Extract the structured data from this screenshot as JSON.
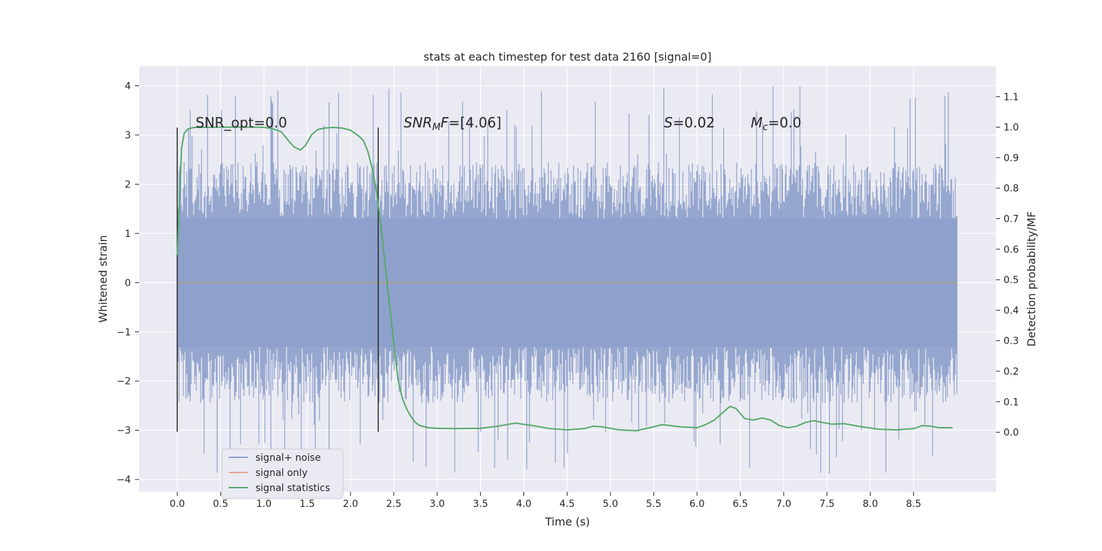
{
  "chart_data": {
    "type": "line",
    "title": "stats at each timestep for test data 2160 [signal=0]",
    "xlabel": "Time (s)",
    "ylabel": "Whitened strain",
    "y2label": "Detection probability/MF",
    "xlim": [
      -0.44,
      9.45
    ],
    "ylim": [
      -4.25,
      4.4
    ],
    "y2lim": [
      -0.195,
      1.2
    ],
    "x_ticks": [
      0.0,
      0.5,
      1.0,
      1.5,
      2.0,
      2.5,
      3.0,
      3.5,
      4.0,
      4.5,
      5.0,
      5.5,
      6.0,
      6.5,
      7.0,
      7.5,
      8.0,
      8.5
    ],
    "x_tick_labels": [
      "0.0",
      "0.5",
      "1.0",
      "1.5",
      "2.0",
      "2.5",
      "3.0",
      "3.5",
      "4.0",
      "4.5",
      "5.0",
      "5.5",
      "6.0",
      "6.5",
      "7.0",
      "7.5",
      "8.0",
      "8.5"
    ],
    "y_ticks": [
      4,
      3,
      2,
      1,
      0,
      -1,
      -2,
      -3,
      -4
    ],
    "y_tick_labels": [
      "4",
      "3",
      "2",
      "1",
      "0",
      "−1",
      "−2",
      "−3",
      "−4"
    ],
    "y2_ticks": [
      1.1,
      1.0,
      0.9,
      0.8,
      0.7,
      0.6,
      0.5,
      0.4,
      0.3,
      0.2,
      0.1,
      0.0
    ],
    "y2_tick_labels": [
      "1.1",
      "1.0",
      "0.9",
      "0.8",
      "0.7",
      "0.6",
      "0.5",
      "0.4",
      "0.3",
      "0.2",
      "0.1",
      "0.0"
    ],
    "grid": true,
    "legend_position": "lower-left",
    "series": [
      {
        "name": "signal+ noise",
        "color": "#8da0cb",
        "kind": "noise_band",
        "x_range": [
          0.0,
          9.0
        ],
        "typical_range": [
          -2.0,
          2.0
        ],
        "peak_range": [
          -3.9,
          4.0
        ]
      },
      {
        "name": "signal only",
        "color": "#e5a48c",
        "kind": "line",
        "x": [
          0.0,
          9.0
        ],
        "y": [
          0.0,
          0.0
        ]
      },
      {
        "name": "signal statistics",
        "color": "#55a868",
        "kind": "line",
        "axis": "right",
        "x": [
          0.0,
          0.02,
          0.05,
          0.08,
          0.12,
          0.16,
          0.2,
          0.3,
          0.5,
          0.7,
          0.9,
          1.0,
          1.1,
          1.2,
          1.3,
          1.35,
          1.42,
          1.48,
          1.55,
          1.62,
          1.7,
          1.8,
          1.9,
          2.0,
          2.05,
          2.1,
          2.15,
          2.2,
          2.25,
          2.3,
          2.35,
          2.4,
          2.45,
          2.5,
          2.55,
          2.6,
          2.65,
          2.7,
          2.75,
          2.8,
          2.9,
          3.0,
          3.2,
          3.5,
          3.7,
          3.9,
          4.1,
          4.3,
          4.5,
          4.7,
          4.8,
          4.9,
          5.1,
          5.3,
          5.5,
          5.6,
          5.8,
          6.0,
          6.1,
          6.2,
          6.3,
          6.38,
          6.45,
          6.55,
          6.65,
          6.75,
          6.85,
          6.95,
          7.05,
          7.15,
          7.25,
          7.35,
          7.45,
          7.55,
          7.7,
          7.9,
          8.1,
          8.3,
          8.5,
          8.6,
          8.7,
          8.8,
          8.95
        ],
        "y": [
          0.58,
          0.72,
          0.93,
          0.98,
          0.993,
          0.997,
          0.999,
          0.999,
          1.0,
          1.0,
          1.0,
          0.999,
          0.995,
          0.985,
          0.95,
          0.935,
          0.925,
          0.94,
          0.975,
          0.992,
          0.997,
          0.999,
          0.997,
          0.99,
          0.98,
          0.97,
          0.955,
          0.92,
          0.865,
          0.79,
          0.68,
          0.55,
          0.42,
          0.29,
          0.17,
          0.11,
          0.075,
          0.05,
          0.032,
          0.022,
          0.015,
          0.013,
          0.012,
          0.013,
          0.02,
          0.03,
          0.022,
          0.012,
          0.008,
          0.012,
          0.02,
          0.018,
          0.008,
          0.005,
          0.018,
          0.025,
          0.018,
          0.015,
          0.025,
          0.04,
          0.065,
          0.085,
          0.078,
          0.045,
          0.04,
          0.047,
          0.04,
          0.022,
          0.015,
          0.02,
          0.032,
          0.038,
          0.032,
          0.027,
          0.028,
          0.018,
          0.01,
          0.008,
          0.012,
          0.022,
          0.02,
          0.015,
          0.015
        ]
      }
    ],
    "vertical_lines": [
      {
        "x": 0.0,
        "y_range": [
          -3.03,
          3.15
        ],
        "color": "#262626"
      },
      {
        "x": 2.32,
        "y_range": [
          -3.03,
          3.15
        ],
        "color": "#262626"
      }
    ],
    "annotations": [
      {
        "id": "snr-opt",
        "text": "SNR_opt=0.0",
        "x": 0.2,
        "y": 3.22
      },
      {
        "id": "snr-mf",
        "prefix": "SNR",
        "subscript": "M",
        "mid": "F",
        "suffix": "=[4.06]",
        "x": 2.6,
        "y": 3.22
      },
      {
        "id": "s-value",
        "var": "S",
        "suffix": "=0.02",
        "x": 5.6,
        "y": 3.22
      },
      {
        "id": "mc-value",
        "var": "M",
        "subscript": "c",
        "suffix": "=0.0",
        "x": 6.6,
        "y": 3.22
      }
    ]
  }
}
